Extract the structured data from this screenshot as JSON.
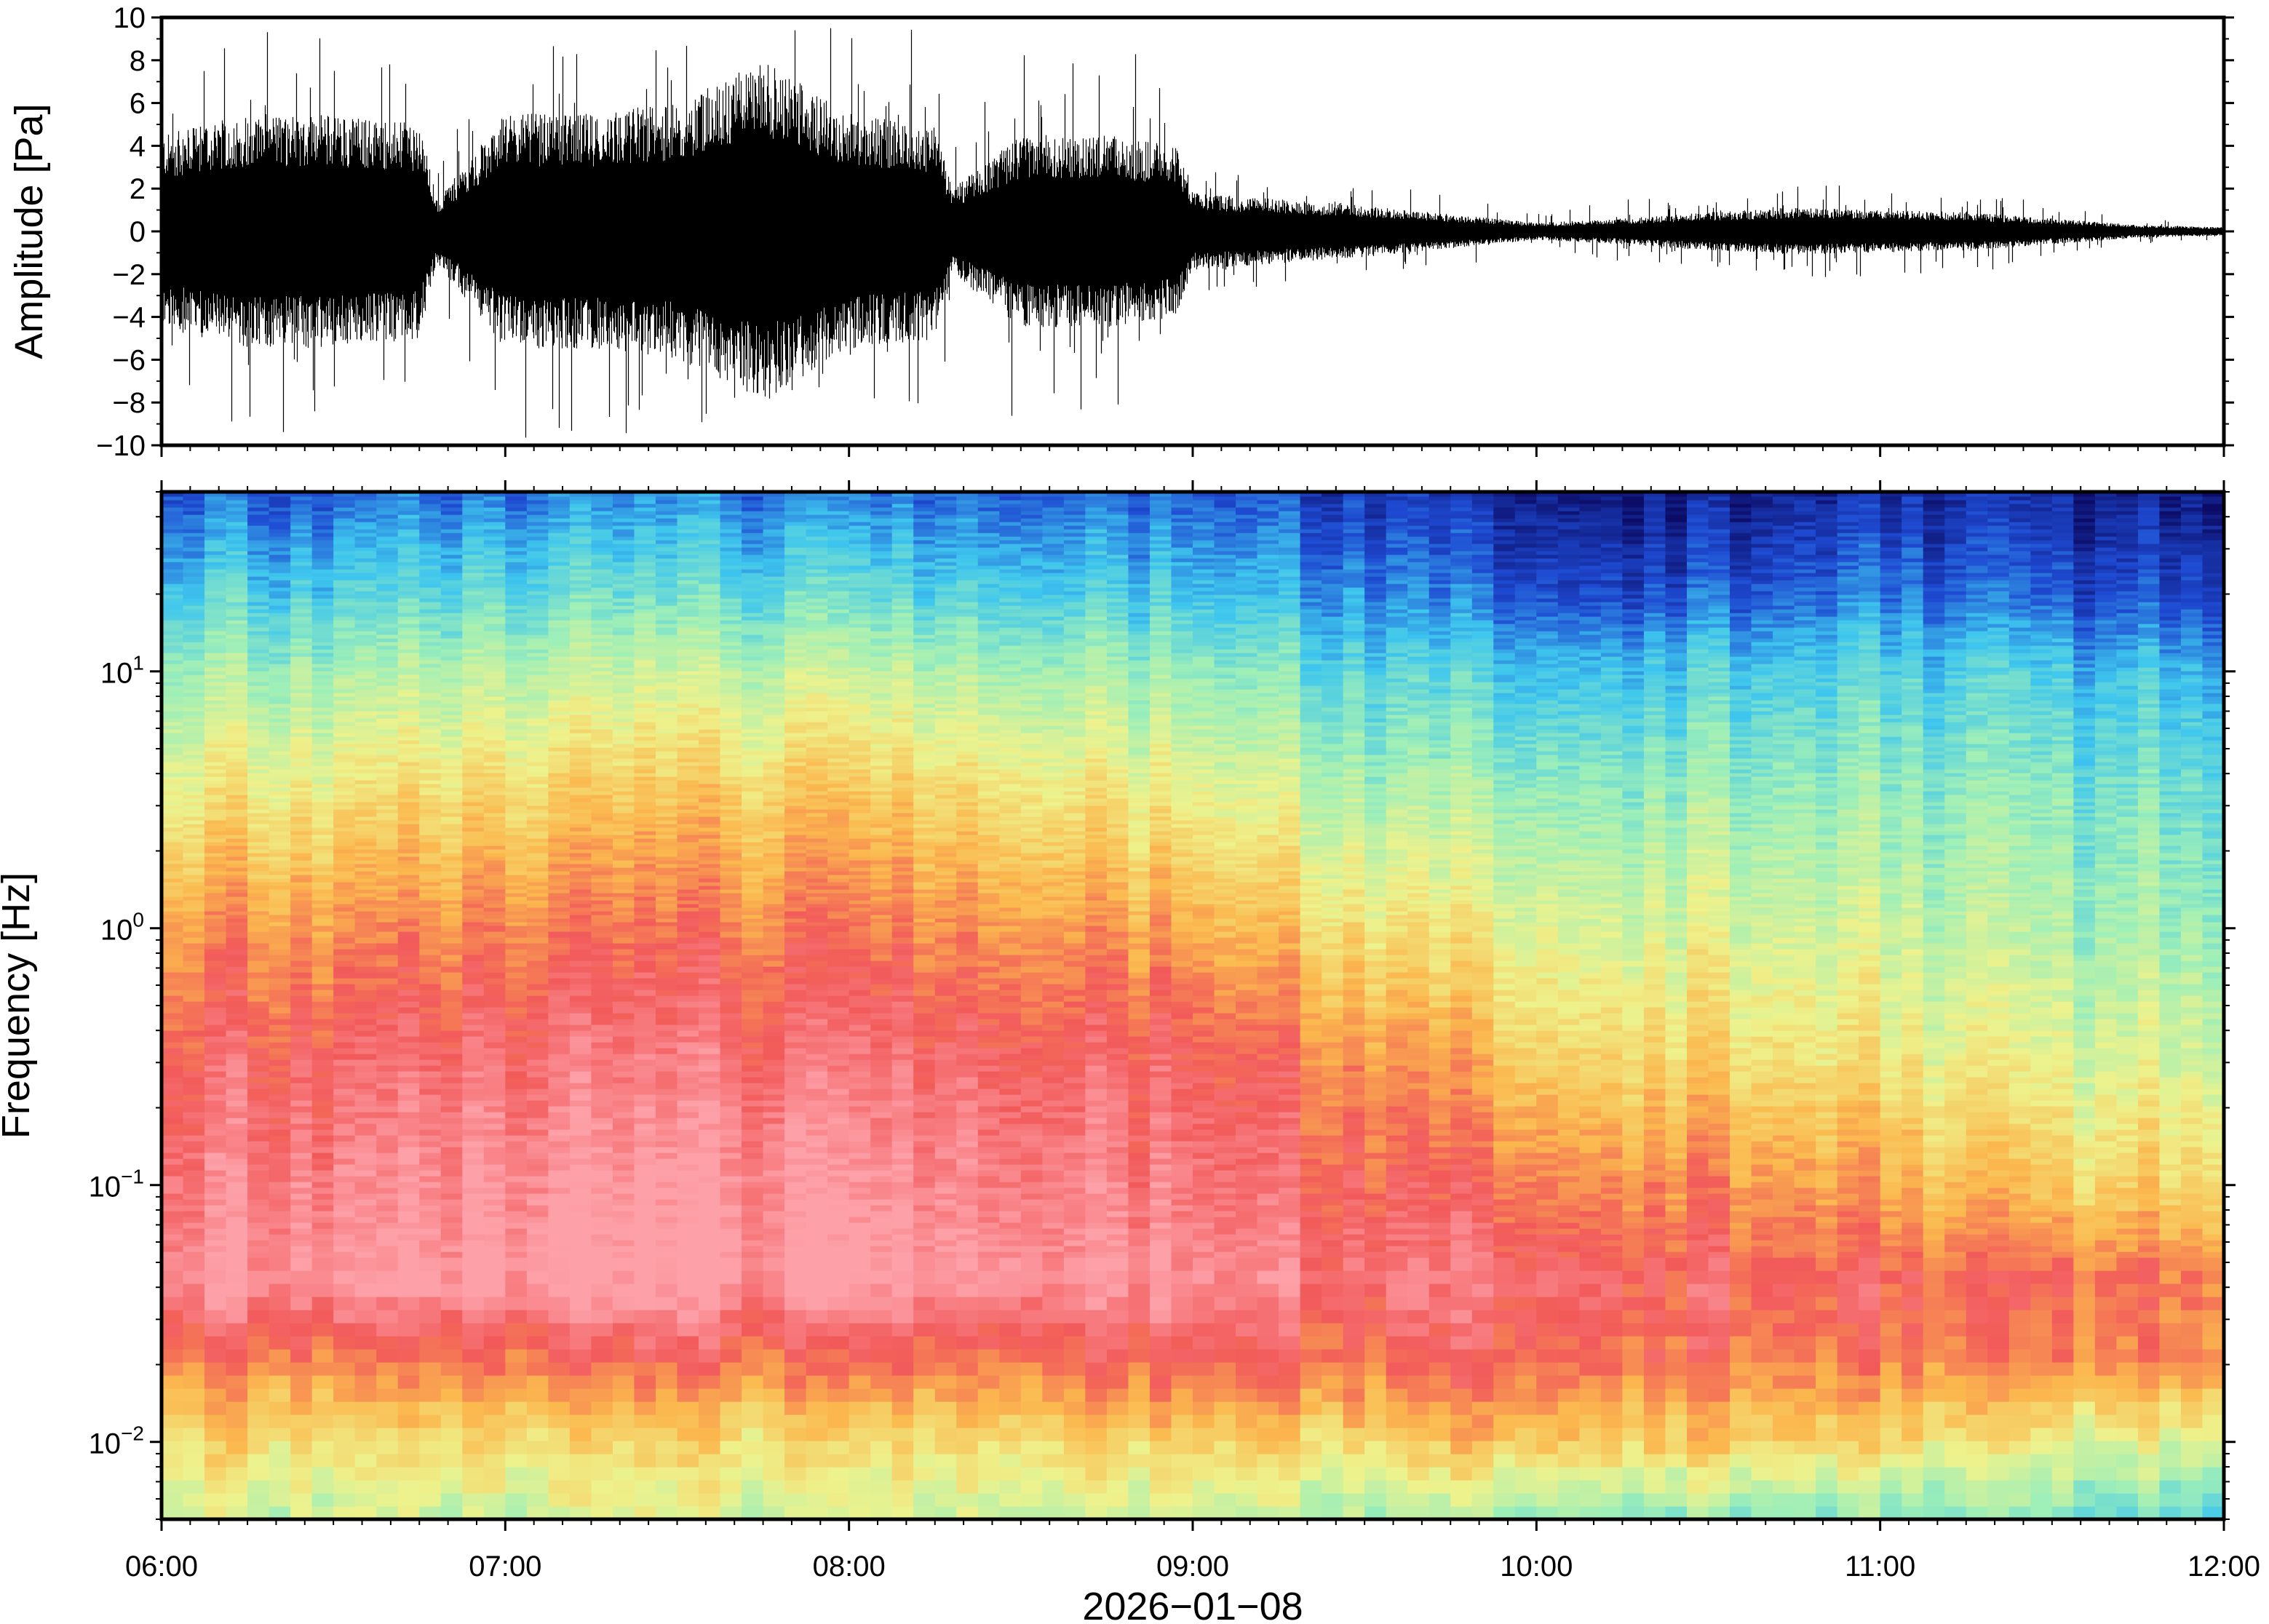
{
  "chart_data": [
    {
      "type": "line",
      "panel": "waveform",
      "ylabel": "Amplitude [Pa]",
      "xlabel": "",
      "ylim": [
        -10,
        10
      ],
      "yticks": [
        -10,
        -8,
        -6,
        -4,
        -2,
        0,
        2,
        4,
        6,
        8,
        10
      ],
      "ytick_labels": [
        "−10",
        "−8",
        "−6",
        "−4",
        "−2",
        "0",
        "2",
        "4",
        "6",
        "8",
        "10"
      ],
      "x_range_hours": [
        6,
        12
      ],
      "grid": false,
      "series": [
        {
          "x_hours": [
            6.0,
            6.25,
            6.5,
            6.75,
            6.8,
            7.0,
            7.25,
            7.5,
            7.75,
            8.0,
            8.25,
            8.3,
            8.5,
            8.75,
            8.95,
            9.0,
            9.25,
            9.5,
            9.75,
            10.0,
            10.25,
            10.5,
            10.75,
            11.0,
            11.25,
            11.5,
            11.75,
            12.0
          ],
          "envelope_pa": [
            4.5,
            5.5,
            5.5,
            5.0,
            1.5,
            5.5,
            5.5,
            6.0,
            8.0,
            5.5,
            5.0,
            2.0,
            4.5,
            4.5,
            4.0,
            1.8,
            1.5,
            1.2,
            0.8,
            0.4,
            0.6,
            0.9,
            1.1,
            1.0,
            0.9,
            0.6,
            0.3,
            0.2
          ],
          "peak_pa": [
            9.0,
            9.5,
            9.6,
            8.0,
            3.0,
            9.8,
            9.7,
            9.6,
            10.0,
            9.7,
            9.5,
            4.0,
            9.5,
            8.5,
            8.0,
            3.0,
            2.5,
            2.2,
            1.8,
            0.8,
            1.5,
            1.6,
            2.2,
            2.3,
            2.0,
            1.3,
            0.6,
            0.4
          ]
        }
      ]
    },
    {
      "type": "heatmap",
      "panel": "spectrogram",
      "ylabel": "Frequency [Hz]",
      "xlabel": "2026−01−08",
      "y_scale": "log",
      "ylim": [
        0.005,
        50
      ],
      "yticks": [
        0.01,
        0.1,
        1,
        10
      ],
      "ytick_labels": [
        {
          "base": "10",
          "exp": "−2"
        },
        {
          "base": "10",
          "exp": "−1"
        },
        {
          "base": "10",
          "exp": "0"
        },
        {
          "base": "10",
          "exp": "1"
        }
      ],
      "x_range_hours": [
        6,
        12
      ],
      "xticks_hours": [
        6,
        7,
        8,
        9,
        10,
        11,
        12
      ],
      "xtick_labels": [
        "06:00",
        "07:00",
        "08:00",
        "09:00",
        "10:00",
        "11:00",
        "12:00"
      ],
      "colormap": "rainbow (navy = low power, pink/red = high power)",
      "colormap_stops": [
        "#0c0c66",
        "#1e4ad2",
        "#3ec6ee",
        "#9eefb8",
        "#eef28c",
        "#fbb84e",
        "#f25a5a",
        "#fda0a8"
      ],
      "grid": false,
      "power_index_profile": {
        "x_hours": [
          6.0,
          7.0,
          8.0,
          9.0,
          9.5,
          10.0,
          10.5,
          11.0,
          11.5,
          12.0
        ],
        "log10_freq": [
          -2.3,
          -2.0,
          -1.7,
          -1.4,
          -1.0,
          -0.5,
          0.0,
          0.5,
          1.0,
          1.3,
          1.7
        ],
        "values": [
          [
            3.8,
            4.6,
            5.8,
            6.9,
            6.6,
            6.1,
            5.4,
            4.2,
            3.1,
            2.2,
            1.2
          ],
          [
            3.6,
            4.4,
            5.7,
            7.0,
            6.8,
            6.3,
            5.5,
            4.5,
            3.3,
            2.4,
            1.3
          ],
          [
            3.7,
            4.5,
            5.8,
            7.1,
            6.9,
            6.4,
            5.7,
            4.8,
            3.5,
            2.5,
            1.4
          ],
          [
            3.6,
            4.6,
            5.9,
            6.7,
            6.4,
            6.0,
            5.1,
            4.0,
            2.9,
            2.0,
            1.1
          ],
          [
            3.4,
            4.7,
            6.0,
            6.5,
            6.1,
            5.5,
            4.4,
            3.4,
            2.4,
            1.7,
            0.8
          ],
          [
            3.2,
            4.9,
            5.9,
            6.3,
            5.6,
            4.6,
            3.8,
            3.0,
            2.0,
            1.0,
            0.3
          ],
          [
            3.1,
            4.8,
            5.8,
            6.2,
            5.5,
            4.5,
            3.8,
            3.1,
            2.2,
            1.1,
            0.3
          ],
          [
            3.0,
            4.6,
            5.6,
            6.0,
            5.2,
            4.2,
            3.6,
            3.0,
            2.3,
            1.4,
            0.6
          ],
          [
            2.8,
            4.1,
            5.5,
            5.8,
            4.6,
            3.8,
            3.2,
            2.8,
            2.1,
            1.1,
            0.4
          ],
          [
            2.3,
            3.9,
            5.4,
            5.6,
            4.5,
            3.6,
            3.0,
            2.5,
            1.8,
            0.8,
            0.2
          ]
        ]
      }
    }
  ]
}
